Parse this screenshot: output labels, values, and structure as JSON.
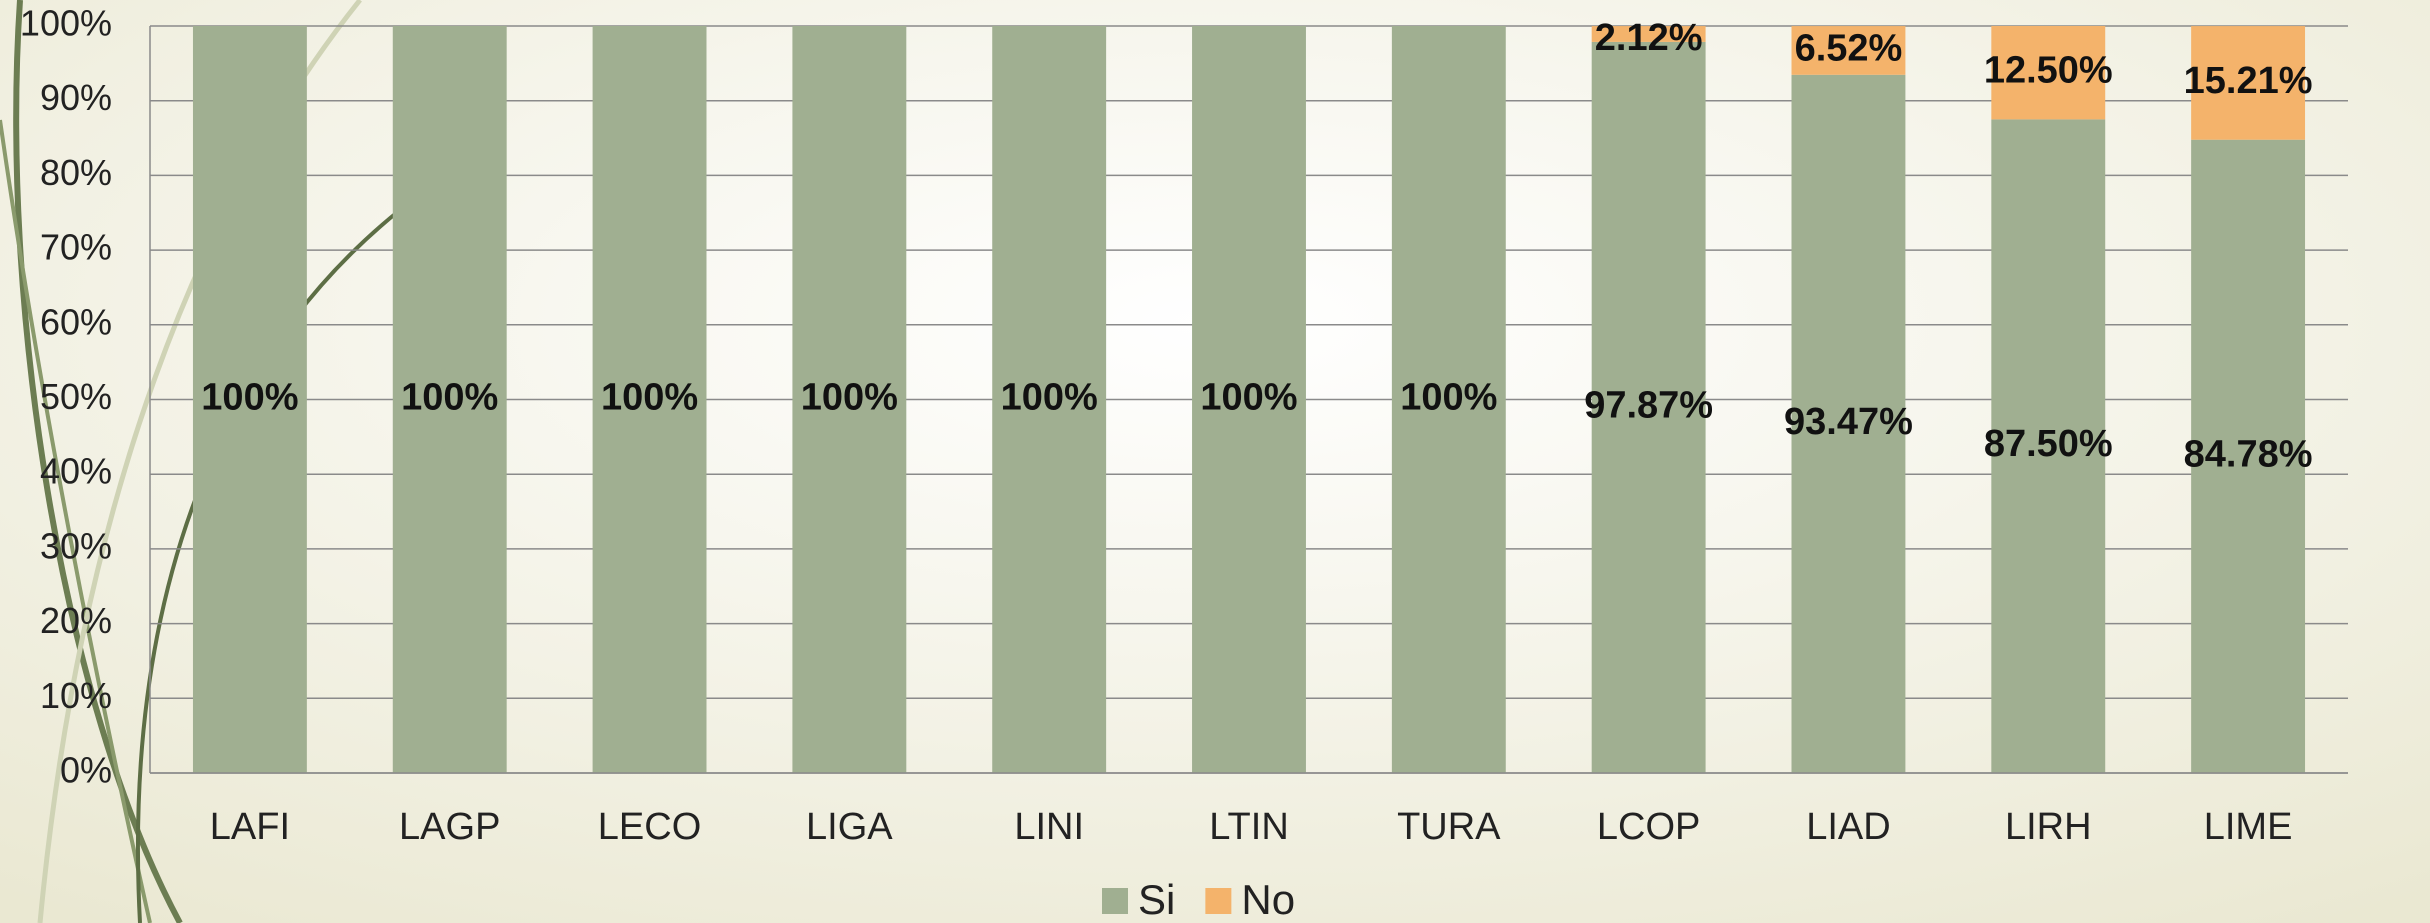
{
  "chart_data": {
    "type": "stacked-bar",
    "categories": [
      "LAFI",
      "LAGP",
      "LECO",
      "LIGA",
      "LINI",
      "LTIN",
      "TURA",
      "LCOP",
      "LIAD",
      "LIRH",
      "LIME"
    ],
    "series": [
      {
        "name": "Si",
        "color": "#a0af91",
        "values": [
          100,
          100,
          100,
          100,
          100,
          100,
          100,
          97.87,
          93.47,
          87.5,
          84.78
        ],
        "value_labels": [
          "100%",
          "100%",
          "100%",
          "100%",
          "100%",
          "100%",
          "100%",
          "97.87%",
          "93.47%",
          "87.50%",
          "84.78%"
        ]
      },
      {
        "name": "No",
        "color": "#f4b36b",
        "values": [
          null,
          null,
          null,
          null,
          null,
          null,
          null,
          2.12,
          6.52,
          12.5,
          15.21
        ],
        "value_labels": [
          null,
          null,
          null,
          null,
          null,
          null,
          null,
          "2.12%",
          "6.52%",
          "12.50%",
          "15.21%"
        ]
      }
    ],
    "ylim": [
      0,
      100
    ],
    "yticks": [
      {
        "value": 0,
        "label": "0%"
      },
      {
        "value": 10,
        "label": "10%"
      },
      {
        "value": 20,
        "label": "20%"
      },
      {
        "value": 30,
        "label": "30%"
      },
      {
        "value": 40,
        "label": "40%"
      },
      {
        "value": 50,
        "label": "50%"
      },
      {
        "value": 60,
        "label": "60%"
      },
      {
        "value": 70,
        "label": "70%"
      },
      {
        "value": 80,
        "label": "80%"
      },
      {
        "value": 90,
        "label": "90%"
      },
      {
        "value": 100,
        "label": "100%"
      }
    ],
    "grid": true,
    "legend": "bottom"
  }
}
